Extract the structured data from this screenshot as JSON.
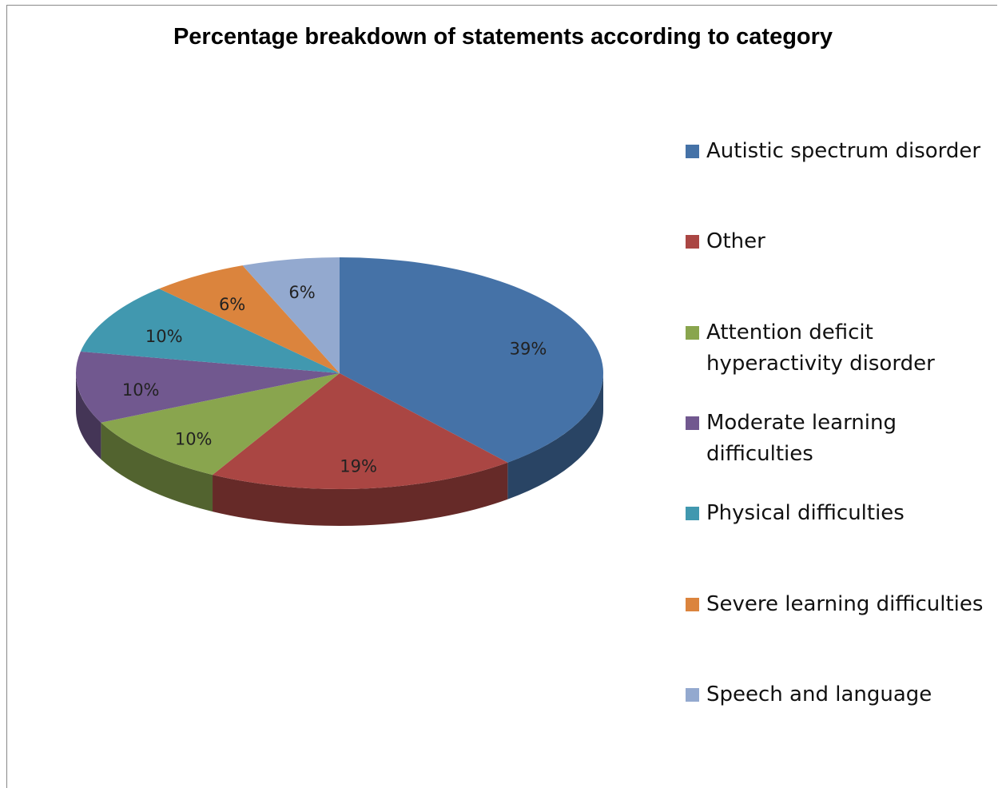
{
  "chart_data": {
    "type": "pie",
    "three_d": true,
    "title": "Percentage breakdown of statements according to category",
    "categories": [
      "Autistic spectrum disorder",
      "Other",
      "Attention deficit hyperactivity disorder",
      "Moderate learning difficulties",
      "Physical difficulties",
      "Severe learning difficulties",
      "Speech and language"
    ],
    "values": [
      39,
      19,
      10,
      10,
      10,
      6,
      6
    ],
    "value_labels": [
      "39%",
      "19%",
      "10%",
      "10%",
      "10%",
      "6%",
      "6%"
    ],
    "colors": [
      "#4572a7",
      "#aa4643",
      "#89a54e",
      "#71588f",
      "#4198af",
      "#db843d",
      "#93a9cf"
    ],
    "legend": "right"
  }
}
